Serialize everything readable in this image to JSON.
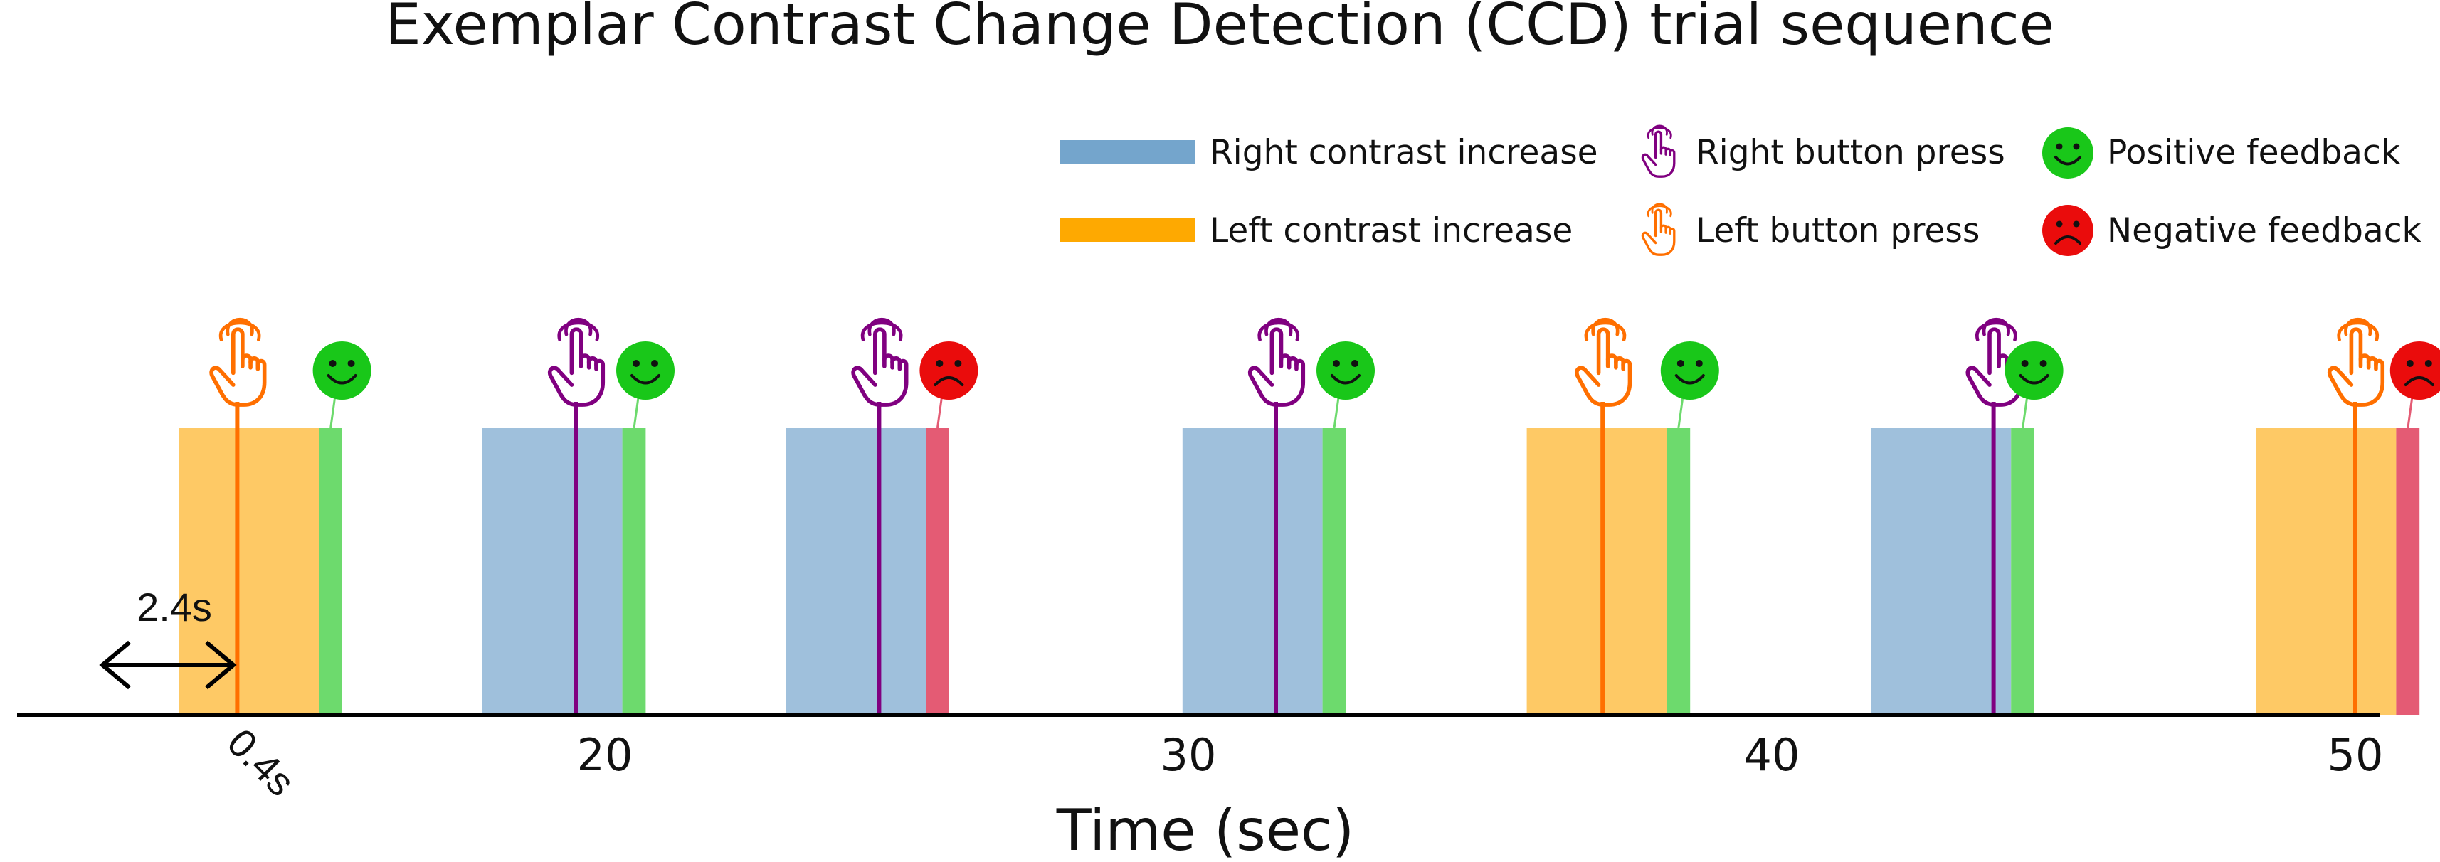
{
  "chart_data": {
    "type": "bar",
    "title": "Exemplar Contrast Change Detection (CCD) trial sequence",
    "xlabel": "Time (sec)",
    "ylabel": "",
    "xlim": [
      11.3,
      52.0
    ],
    "xticks": [
      20,
      30,
      40,
      50
    ],
    "grid": false,
    "legend_position": "top-right",
    "colors": {
      "right": "#9fc0dc",
      "right_legend": "#74a5cc",
      "left": "#fec965",
      "left_legend": "#fea901",
      "positive": "#6dda6d",
      "negative": "#e45b74",
      "right_press": "#800080",
      "left_press": "#ff6f00",
      "smiley_pos": "#19c719",
      "smiley_neg": "#ea0c0c"
    },
    "legend": [
      {
        "label": "Right contrast increase",
        "icon": "right-contrast-swatch"
      },
      {
        "label": "Left contrast increase",
        "icon": "left-contrast-swatch"
      },
      {
        "label": "Right button press",
        "icon": "pointing-hand-icon"
      },
      {
        "label": "Left button press",
        "icon": "pointing-hand-icon"
      },
      {
        "label": "Positive feedback",
        "icon": "smiley-face-icon"
      },
      {
        "label": "Negative feedback",
        "icon": "frowny-face-icon"
      }
    ],
    "trials": [
      {
        "side": "left",
        "start": 12.7,
        "end": 15.1,
        "press": 13.7,
        "feedback": "positive"
      },
      {
        "side": "right",
        "start": 17.9,
        "end": 20.3,
        "press": 19.5,
        "feedback": "positive"
      },
      {
        "side": "right",
        "start": 23.1,
        "end": 25.5,
        "press": 24.7,
        "feedback": "negative"
      },
      {
        "side": "right",
        "start": 29.9,
        "end": 32.3,
        "press": 31.5,
        "feedback": "positive"
      },
      {
        "side": "left",
        "start": 35.8,
        "end": 38.2,
        "press": 37.1,
        "feedback": "positive"
      },
      {
        "side": "right",
        "start": 41.7,
        "end": 44.1,
        "press": 43.8,
        "feedback": "positive"
      },
      {
        "side": "left",
        "start": 48.3,
        "end": 50.7,
        "press": 50.0,
        "feedback": "negative"
      }
    ],
    "feedback_duration": 0.4,
    "annotations": {
      "stim_duration": "2.4s",
      "feedback_duration": "0.4s"
    }
  }
}
